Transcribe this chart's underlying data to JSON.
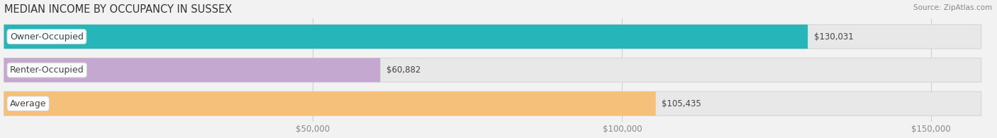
{
  "title": "MEDIAN INCOME BY OCCUPANCY IN SUSSEX",
  "source": "Source: ZipAtlas.com",
  "categories": [
    "Owner-Occupied",
    "Renter-Occupied",
    "Average"
  ],
  "values": [
    130031,
    60882,
    105435
  ],
  "bar_colors": [
    "#26b5b8",
    "#c4a8d0",
    "#f5c07a"
  ],
  "value_labels": [
    "$130,031",
    "$60,882",
    "$105,435"
  ],
  "xlim": [
    0,
    160000
  ],
  "xticks": [
    50000,
    100000,
    150000
  ],
  "xtick_labels": [
    "$50,000",
    "$100,000",
    "$150,000"
  ],
  "grid_color": "#d0d0d0",
  "track_color": "#e8e8e8",
  "track_edge_color": "#d5d5d5",
  "bar_height": 0.72,
  "background_color": "#f2f2f2",
  "title_fontsize": 10.5,
  "tick_fontsize": 8.5,
  "label_fontsize": 9,
  "value_fontsize": 8.5,
  "label_text_color": "#444444",
  "value_text_color": "#444444",
  "title_color": "#333333",
  "source_color": "#888888"
}
